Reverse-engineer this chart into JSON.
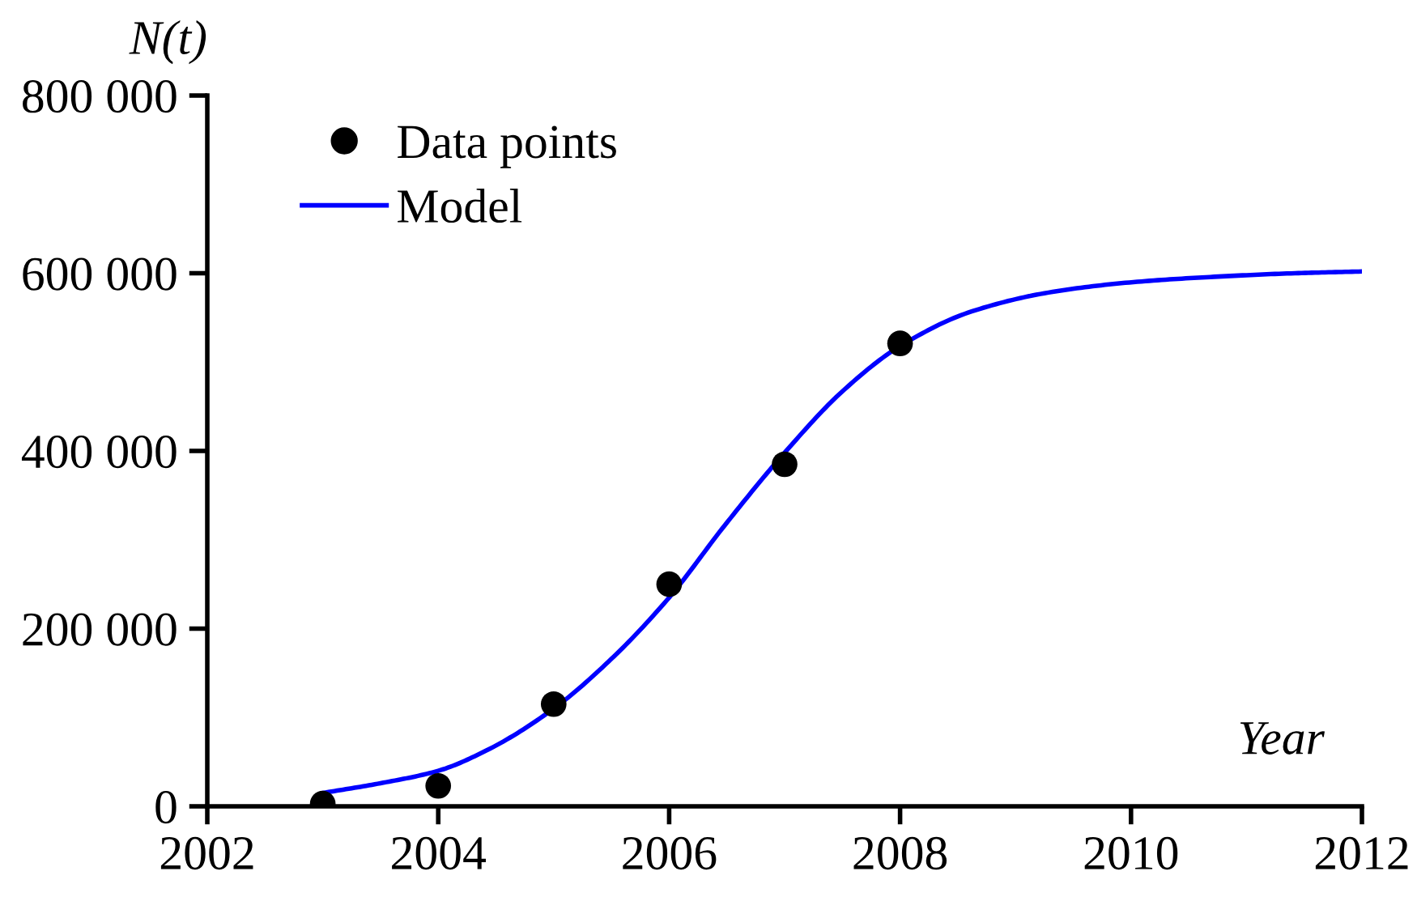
{
  "chart_data": {
    "type": "scatter",
    "xlabel": "Year",
    "ylabel": "N(t)",
    "xlim": [
      2002,
      2012
    ],
    "xticks": [
      2002,
      2004,
      2006,
      2008,
      2010,
      2012
    ],
    "ylim": [
      0,
      800000
    ],
    "yticks": [
      0,
      {
        "value": 200000,
        "label": "200 000"
      },
      {
        "value": 400000,
        "label": "400 000"
      },
      {
        "value": 600000,
        "label": "600 000"
      },
      {
        "value": 800000,
        "label": "800 000"
      }
    ],
    "legend": "top left",
    "series": [
      {
        "name": "Data points",
        "color": "#000000",
        "marker": "circle",
        "x": [
          2003,
          2004,
          2005,
          2006,
          2007,
          2008
        ],
        "values": [
          3000,
          23000,
          115000,
          250000,
          385000,
          521000
        ]
      },
      {
        "name": "Model",
        "type": "line",
        "color": "#0000ff",
        "marker": "none",
        "line_style": "solid",
        "x": [
          2003,
          2003.5,
          2004,
          2004.42,
          2005,
          2005.5,
          2006,
          2006.48,
          2007,
          2007.5,
          2008,
          2008.62,
          2009.32,
          2010.02,
          2010.72,
          2011.42,
          2012
        ],
        "values": [
          15000,
          26000,
          40000,
          63000,
          110000,
          166000,
          235000,
          316000,
          398000,
          467000,
          518000,
          557000,
          579000,
          590000,
          596000,
          600000,
          602000
        ]
      }
    ]
  }
}
